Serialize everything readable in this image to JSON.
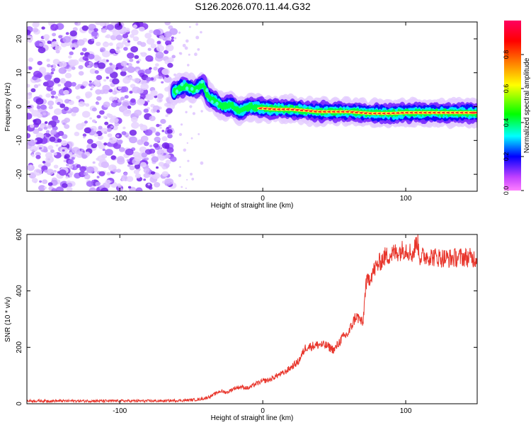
{
  "title": "S126.2026.070.11.44.G32",
  "colors": {
    "snr_line": "#e8342a",
    "spectrogram_ridge": "#e8342a",
    "noise": "#7c2ee8"
  },
  "chart_data": [
    {
      "type": "heatmap",
      "xlabel": "Height of straight line (km)",
      "ylabel": "Frequency (Hz)",
      "xlim": [
        -165,
        150
      ],
      "ylim": [
        -25,
        25
      ],
      "x_ticks": [
        -100,
        0,
        100
      ],
      "y_ticks": [
        20,
        10,
        0,
        -10,
        -20
      ],
      "grid": false,
      "colorbar": {
        "label": "Normalized spectral amplitude",
        "range": [
          0,
          1
        ],
        "ticks": [
          "0.0",
          "0.2",
          "0.4",
          "0.6",
          "0.8"
        ],
        "colormap": [
          "#ff00ff",
          "#8000ff",
          "#0000ff",
          "#00ffff",
          "#00ff00",
          "#ffff00",
          "#ff8000",
          "#ff0000",
          "#ff0060"
        ]
      },
      "noise_region_x": [
        -165,
        -62
      ],
      "signal_ridge": [
        {
          "x": -62,
          "y": 4.5
        },
        {
          "x": -55,
          "y": 6
        },
        {
          "x": -48,
          "y": 5
        },
        {
          "x": -42,
          "y": 6.5
        },
        {
          "x": -38,
          "y": 3
        },
        {
          "x": -33,
          "y": 1.5
        },
        {
          "x": -28,
          "y": 0
        },
        {
          "x": -22,
          "y": 0.5
        },
        {
          "x": -17,
          "y": -1.5
        },
        {
          "x": -12,
          "y": -0.5
        },
        {
          "x": -8,
          "y": 0
        },
        {
          "x": 0,
          "y": -0.5
        },
        {
          "x": 10,
          "y": -0.8
        },
        {
          "x": 20,
          "y": -0.8
        },
        {
          "x": 40,
          "y": -1.5
        },
        {
          "x": 60,
          "y": -1.5
        },
        {
          "x": 75,
          "y": -2
        },
        {
          "x": 90,
          "y": -2
        },
        {
          "x": 100,
          "y": -1.8
        },
        {
          "x": 115,
          "y": -1.8
        },
        {
          "x": 130,
          "y": -1.8
        },
        {
          "x": 150,
          "y": -1.8
        }
      ]
    },
    {
      "type": "line",
      "xlabel": "Height of straight line (km)",
      "ylabel": "SNR (10 * v/v)",
      "xlim": [
        -165,
        150
      ],
      "ylim": [
        0,
        600
      ],
      "x_ticks": [
        -100,
        0,
        100
      ],
      "y_ticks": [
        0,
        200,
        400,
        600
      ],
      "grid": false,
      "series": [
        {
          "x": [
            -165,
            -150,
            -120,
            -90,
            -70,
            -55,
            -45,
            -40,
            -35,
            -30,
            -25,
            -20,
            -15,
            -10,
            -5,
            0,
            5,
            10,
            15,
            20,
            25,
            28,
            30,
            40,
            45,
            50,
            55,
            60,
            65,
            68,
            70,
            72,
            75,
            80,
            85,
            90,
            95,
            100,
            105,
            108,
            110,
            115,
            120,
            130,
            140,
            150
          ],
          "values": [
            10,
            10,
            10,
            10,
            10,
            12,
            15,
            20,
            30,
            45,
            40,
            55,
            60,
            55,
            70,
            80,
            85,
            100,
            110,
            130,
            150,
            180,
            200,
            210,
            205,
            190,
            230,
            250,
            310,
            300,
            280,
            420,
            450,
            490,
            520,
            530,
            540,
            550,
            530,
            580,
            520,
            525,
            520,
            515,
            520,
            515
          ]
        }
      ]
    }
  ]
}
